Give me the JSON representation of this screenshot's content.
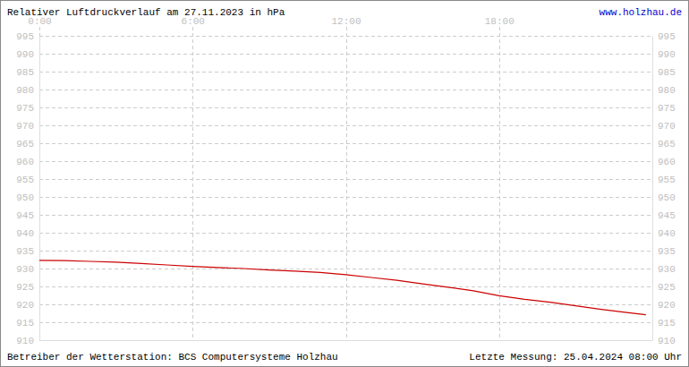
{
  "chart_data": {
    "type": "line",
    "title": "Relativer Luftdruckverlauf am 27.11.2023 in hPa",
    "annotations": [
      "www.holzhau.de",
      "Betreiber der Wetterstation: BCS Computersysteme Holzhau",
      "Letzte Messung: 25.04.2024 08:00 Uhr"
    ],
    "x": [
      0,
      1,
      2,
      3,
      4,
      5,
      6,
      7,
      8,
      9,
      10,
      11,
      12,
      13,
      14,
      15,
      16,
      17,
      18,
      19,
      20,
      21,
      22,
      23,
      23.75
    ],
    "values": [
      932.3,
      932.2,
      932.0,
      931.8,
      931.4,
      931.0,
      930.6,
      930.3,
      930.0,
      929.6,
      929.3,
      928.9,
      928.3,
      927.5,
      926.7,
      925.7,
      924.8,
      923.8,
      922.4,
      921.4,
      920.6,
      919.6,
      918.6,
      917.7,
      917.1
    ],
    "color": "#cc0000",
    "xlim": [
      0,
      24
    ],
    "xticks": [
      {
        "value": 0,
        "label": "0:00"
      },
      {
        "value": 6,
        "label": "6:00"
      },
      {
        "value": 12,
        "label": "12:00"
      },
      {
        "value": 18,
        "label": "18:00"
      }
    ],
    "ylim": [
      910,
      995
    ],
    "yticks": [
      910,
      915,
      920,
      925,
      930,
      935,
      940,
      945,
      950,
      955,
      960,
      965,
      970,
      975,
      980,
      985,
      990,
      995
    ],
    "grid": true
  }
}
